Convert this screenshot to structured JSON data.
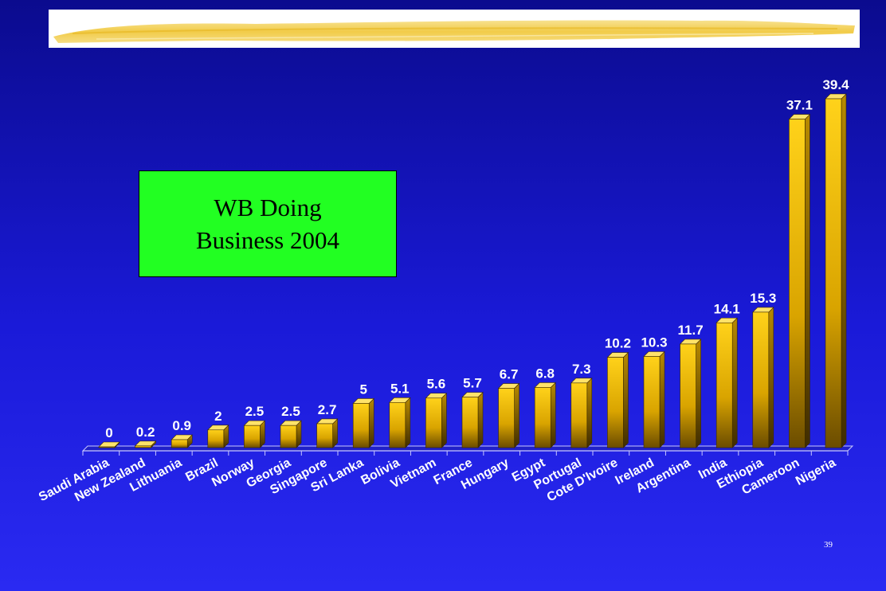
{
  "slide": {
    "title_box_text": "WB   Doing\nBusiness 2004",
    "page_number": "39"
  },
  "colors": {
    "background_top": "#0b0b8e",
    "background_bottom": "#2a2af2",
    "bar_face": "#e8b800",
    "title_box": "#22ff22",
    "header_band": "#ffffff",
    "brush_stroke": "#f3d36a"
  },
  "chart_data": {
    "type": "bar",
    "style": "3d",
    "title": "",
    "xlabel": "",
    "ylabel": "",
    "grid": false,
    "legend": "none",
    "ylim": [
      0,
      39.4
    ],
    "categories": [
      "Saudi Arabia",
      "New Zealand",
      "Lithuania",
      "Brazil",
      "Norway",
      "Georgia",
      "Singapore",
      "Sri Lanka",
      "Bolivia",
      "Vietnam",
      "France",
      "Hungary",
      "Egypt",
      "Portugal",
      "Cote D'Ivoire",
      "Ireland",
      "Argentina",
      "India",
      "Ethiopia",
      "Cameroon",
      "Nigeria"
    ],
    "values": [
      0,
      0.2,
      0.9,
      2,
      2.5,
      2.5,
      2.7,
      5,
      5.1,
      5.6,
      5.7,
      6.7,
      6.8,
      7.3,
      10.2,
      10.3,
      11.7,
      14.1,
      15.3,
      37.1,
      39.4
    ],
    "value_labels": [
      "0",
      "0.2",
      "0.9",
      "2",
      "2.5",
      "2.5",
      "2.7",
      "5",
      "5.1",
      "5.6",
      "5.7",
      "6.7",
      "6.8",
      "7.3",
      "10.2",
      "10.3",
      "11.7",
      "14.1",
      "15.3",
      "37.1",
      "39.4"
    ]
  }
}
